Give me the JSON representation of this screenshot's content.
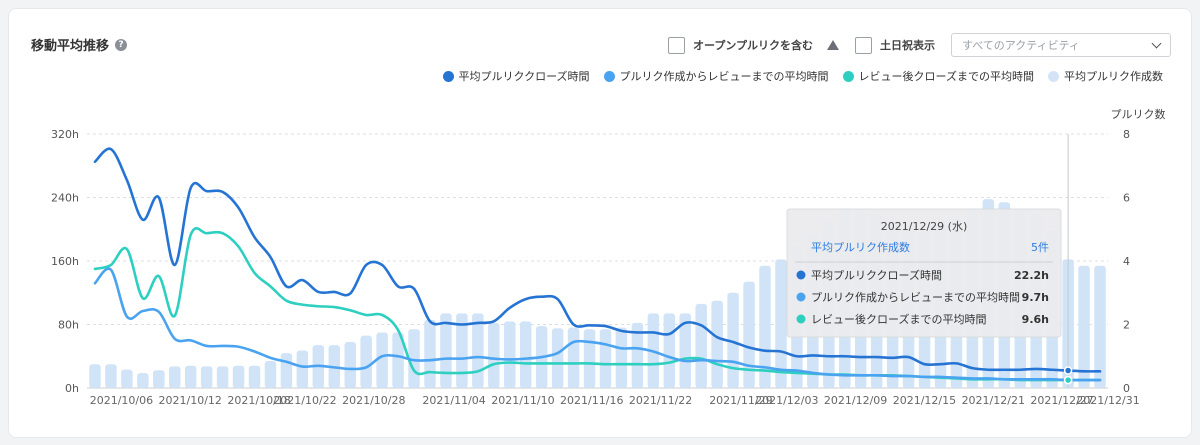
{
  "panel": {
    "title": "移動平均推移",
    "help_icon": "question-circle-icon",
    "checkbox_open_pr": "オープンプルリクを含む",
    "warning_icon": "warning-triangle-icon",
    "checkbox_weekend": "土日祝表示",
    "select_value": "すべてのアクティビティ"
  },
  "colors": {
    "close": "#2574d4",
    "review": "#4aa3f0",
    "after_review": "#2dcfc0",
    "bars": "#cfe2f7"
  },
  "legend": [
    {
      "label": "平均プルリククローズ時間",
      "color": "#2574d4"
    },
    {
      "label": "プルリク作成からレビューまでの平均時間",
      "color": "#4aa3f0"
    },
    {
      "label": "レビュー後クローズまでの平均時間",
      "color": "#2dcfc0"
    },
    {
      "label": "平均プルリク作成数",
      "color": "#d4e4f6"
    }
  ],
  "chart_data": {
    "type": "line",
    "x_start": "2021-10-03",
    "x_end": "2021-12-31",
    "x_ticks": [
      "2021/10/06",
      "2021/10/12",
      "2021/10/18",
      "2021/10/22",
      "2021/10/28",
      "2021/11/04",
      "2021/11/10",
      "2021/11/16",
      "2021/11/22",
      "2021/11/29",
      "2021/12/03",
      "2021/12/09",
      "2021/12/15",
      "2021/12/21",
      "2021/12/27",
      "2021/12/31"
    ],
    "y_left": {
      "ticks": [
        "0h",
        "80h",
        "160h",
        "240h",
        "320h"
      ],
      "max": 320
    },
    "y_right": {
      "label": "プルリク数",
      "ticks": [
        "0",
        "2",
        "4",
        "6",
        "8"
      ],
      "max": 8
    },
    "series": [
      {
        "name": "平均プルリククローズ時間",
        "values": [
          285,
          301,
          262,
          212,
          240,
          155,
          252,
          248,
          247,
          227,
          190,
          165,
          128,
          136,
          121,
          121,
          119,
          155,
          155,
          128,
          125,
          84,
          82,
          80,
          82,
          84,
          101,
          112,
          115,
          112,
          80,
          79,
          78,
          72,
          70,
          70,
          68,
          82,
          79,
          64,
          58,
          51,
          47,
          46,
          40,
          41,
          40,
          40,
          39,
          39,
          38,
          39,
          30,
          30,
          31,
          25,
          23,
          23,
          23,
          24,
          23,
          22,
          21,
          21
        ]
      },
      {
        "name": "プルリク作成からレビューまでの平均時間",
        "values": [
          132,
          149,
          90,
          97,
          96,
          62,
          60,
          53,
          53,
          52,
          46,
          38,
          33,
          27,
          28,
          26,
          24,
          26,
          40,
          40,
          35,
          35,
          37,
          37,
          39,
          37,
          36,
          37,
          39,
          44,
          58,
          58,
          55,
          50,
          50,
          46,
          39,
          34,
          35,
          34,
          33,
          28,
          26,
          23,
          22,
          19,
          17,
          16,
          16,
          16,
          15,
          15,
          14,
          14,
          13,
          12,
          12,
          11,
          11,
          11,
          11,
          10,
          10,
          10
        ]
      },
      {
        "name": "レビュー後クローズまでの平均時間",
        "values": [
          150,
          155,
          175,
          113,
          141,
          91,
          193,
          195,
          195,
          178,
          145,
          128,
          110,
          105,
          103,
          102,
          98,
          92,
          92,
          73,
          22,
          20,
          19,
          19,
          21,
          30,
          32,
          31,
          31,
          31,
          31,
          31,
          30,
          30,
          30,
          30,
          32,
          37,
          37,
          30,
          25,
          23,
          22,
          20,
          19,
          18,
          17,
          17,
          16,
          16,
          16,
          15,
          14,
          13,
          12,
          11,
          11,
          11,
          10,
          10,
          10,
          10,
          10,
          10
        ]
      },
      {
        "name": "平均プルリク作成数",
        "type": "bar",
        "values": [
          0.75,
          0.75,
          0.58,
          0.47,
          0.56,
          0.68,
          0.7,
          0.68,
          0.68,
          0.7,
          0.7,
          0.85,
          1.1,
          1.18,
          1.35,
          1.35,
          1.45,
          1.65,
          1.75,
          1.75,
          1.85,
          2.15,
          2.35,
          2.35,
          2.35,
          2.05,
          2.1,
          2.1,
          1.95,
          1.88,
          1.9,
          1.85,
          1.85,
          1.9,
          2.05,
          2.35,
          2.35,
          2.35,
          2.65,
          2.75,
          3,
          3.35,
          3.85,
          4.05,
          4.45,
          4.85,
          5.25,
          5.65,
          5.55,
          5.45,
          5.25,
          5.05,
          4.95,
          5.25,
          5.35,
          5.65,
          5.95,
          5.85,
          5.6,
          5.5,
          4.95,
          4.05,
          3.85,
          3.85
        ]
      }
    ]
  },
  "tooltip": {
    "date": "2021/12/29 (水)",
    "header_label": "平均プルリク作成数",
    "header_value": "5件",
    "rows": [
      {
        "label": "平均プルリククローズ時間",
        "value": "22.2h",
        "color": "#2574d4"
      },
      {
        "label": "プルリク作成からレビューまでの平均時間",
        "value": "9.7h",
        "color": "#4aa3f0"
      },
      {
        "label": "レビュー後クローズまでの平均時間",
        "value": "9.6h",
        "color": "#2dcfc0"
      }
    ]
  }
}
